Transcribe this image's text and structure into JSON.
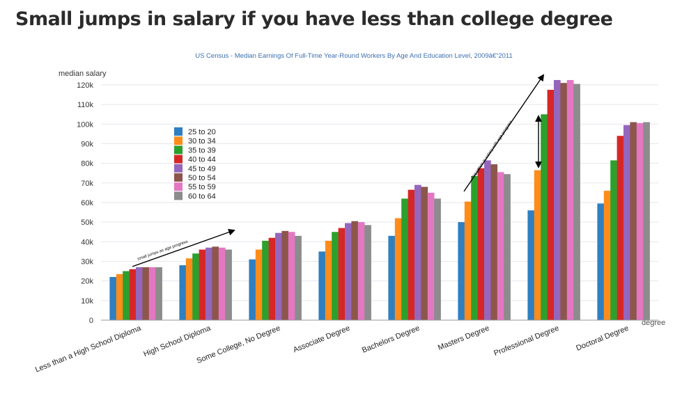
{
  "page": {
    "title": "Small jumps in salary if you have less than college degree"
  },
  "chart_data": {
    "type": "bar",
    "title": "US Census - Median Earnings Of Full-Time Year-Round Workers By Age And Education Level, 2009â€“2011",
    "ylabel": "median salary",
    "xlabel": "degree",
    "ylim": [
      0,
      120000
    ],
    "y_ticks": [
      "0",
      "10k",
      "20k",
      "30k",
      "40k",
      "50k",
      "60k",
      "70k",
      "80k",
      "90k",
      "100k",
      "110k",
      "120k"
    ],
    "grid": true,
    "legend_position": "left",
    "categories": [
      "Less than a High School Diploma",
      "High School Diploma",
      "Some College, No Degree",
      "Associate Degree",
      "Bachelors Degree",
      "Masters Degree",
      "Professional Degree",
      "Doctoral Degree"
    ],
    "series": [
      {
        "name": "25 to 20",
        "color": "#2f7fc1",
        "values": [
          22000,
          28000,
          31000,
          35000,
          43000,
          50000,
          56000,
          59500
        ]
      },
      {
        "name": "30 to 34",
        "color": "#ff8c1a",
        "values": [
          23500,
          31500,
          36000,
          40500,
          52000,
          60500,
          76500,
          66000
        ]
      },
      {
        "name": "35 to 39",
        "color": "#2ca02c",
        "values": [
          25000,
          34000,
          40500,
          45000,
          62000,
          73500,
          105000,
          81500
        ]
      },
      {
        "name": "40 to 44",
        "color": "#d62728",
        "values": [
          26000,
          36000,
          42000,
          47000,
          66500,
          77500,
          117500,
          94000
        ]
      },
      {
        "name": "45 to 49",
        "color": "#9467bd",
        "values": [
          27000,
          37000,
          44500,
          49500,
          69000,
          81500,
          122500,
          99500
        ]
      },
      {
        "name": "50 to 54",
        "color": "#8c564b",
        "values": [
          27000,
          37500,
          45500,
          50500,
          68000,
          79500,
          121000,
          101000
        ]
      },
      {
        "name": "55 to 59",
        "color": "#e377c2",
        "values": [
          27000,
          37000,
          45000,
          50000,
          65000,
          75500,
          122500,
          100500
        ]
      },
      {
        "name": "60 to 64",
        "color": "#8c8c8c",
        "values": [
          27000,
          36000,
          43000,
          48500,
          62000,
          74500,
          120500,
          101000
        ]
      }
    ],
    "annotations": [
      {
        "text": "small jumps as age progress"
      },
      {
        "text": "big jumps in salary with age progress"
      }
    ]
  }
}
